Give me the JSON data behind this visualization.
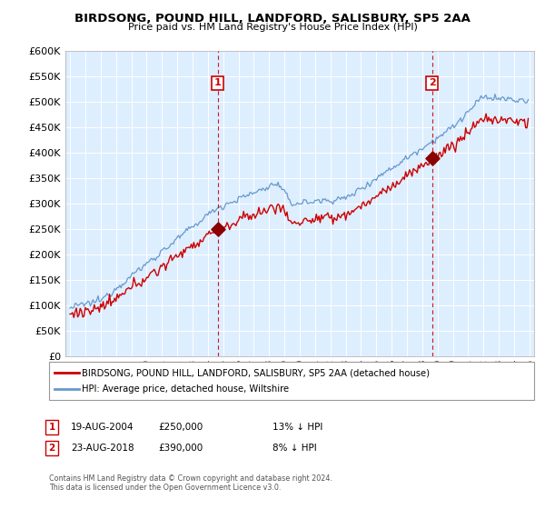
{
  "title": "BIRDSONG, POUND HILL, LANDFORD, SALISBURY, SP5 2AA",
  "subtitle": "Price paid vs. HM Land Registry's House Price Index (HPI)",
  "ylabel_ticks": [
    "£0",
    "£50K",
    "£100K",
    "£150K",
    "£200K",
    "£250K",
    "£300K",
    "£350K",
    "£400K",
    "£450K",
    "£500K",
    "£550K",
    "£600K"
  ],
  "ytick_values": [
    0,
    50000,
    100000,
    150000,
    200000,
    250000,
    300000,
    350000,
    400000,
    450000,
    500000,
    550000,
    600000
  ],
  "ylim": [
    0,
    590000
  ],
  "xlim_start": 1994.7,
  "xlim_end": 2025.3,
  "sale1_x": 2004.637,
  "sale1_y": 250000,
  "sale1_label": "1",
  "sale1_date": "19-AUG-2004",
  "sale1_price": "£250,000",
  "sale1_hpi": "13% ↓ HPI",
  "sale2_x": 2018.637,
  "sale2_y": 390000,
  "sale2_label": "2",
  "sale2_date": "23-AUG-2018",
  "sale2_price": "£390,000",
  "sale2_hpi": "8% ↓ HPI",
  "legend_line1": "BIRDSONG, POUND HILL, LANDFORD, SALISBURY, SP5 2AA (detached house)",
  "legend_line2": "HPI: Average price, detached house, Wiltshire",
  "footer": "Contains HM Land Registry data © Crown copyright and database right 2024.\nThis data is licensed under the Open Government Licence v3.0.",
  "sale_color": "#cc0000",
  "hpi_color": "#6699cc",
  "vline_color": "#cc0000",
  "background_color": "#ddeeff",
  "grid_color": "#ffffff"
}
